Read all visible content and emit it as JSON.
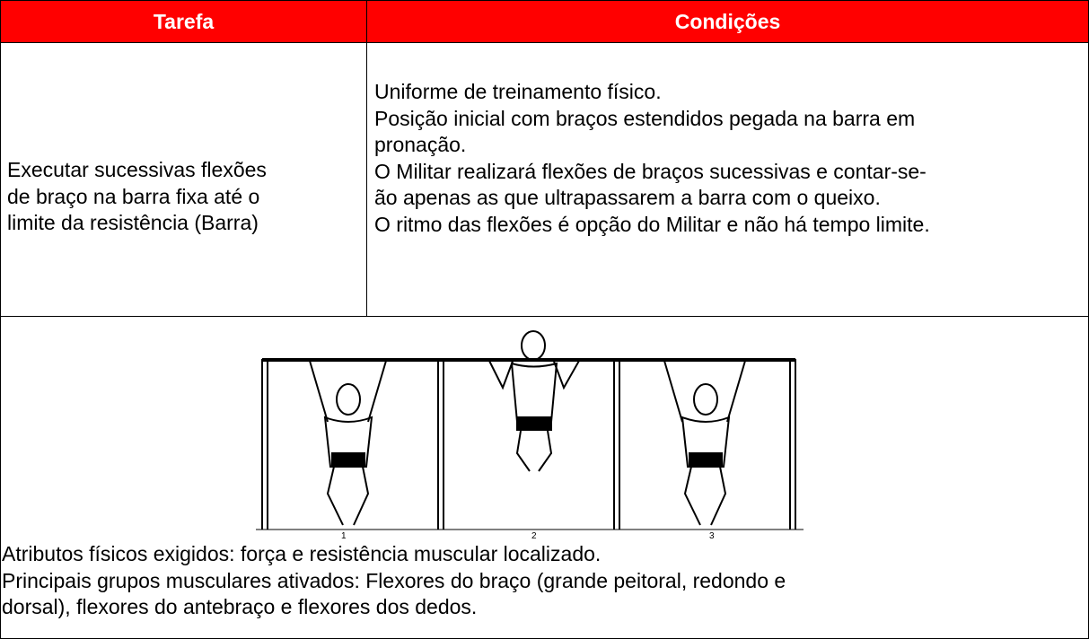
{
  "table": {
    "headers": [
      "Tarefa",
      "Condições"
    ],
    "task_lines": [
      "Executar sucessivas flexões",
      "de braço na barra fixa até o",
      "limite da resistência (Barra)"
    ],
    "condition_lines": [
      "Uniforme de treinamento físico.",
      "Posição inicial com braços estendidos pegada na barra em",
      "pronação.",
      "O Militar realizará flexões de braços sucessivas e contar-se-",
      "ão apenas as que ultrapassarem a barra com o queixo.",
      "O ritmo das flexões é opção do Militar e não há tempo limite."
    ],
    "figure_labels": [
      "1",
      "2",
      "3"
    ],
    "notes_lines": [
      "Atributos físicos exigidos: força e resistência muscular localizado.",
      "Principais grupos musculares ativados: Flexores do braço (grande peitoral, redondo e",
      "dorsal), flexores do antebraço e flexores dos dedos."
    ]
  }
}
